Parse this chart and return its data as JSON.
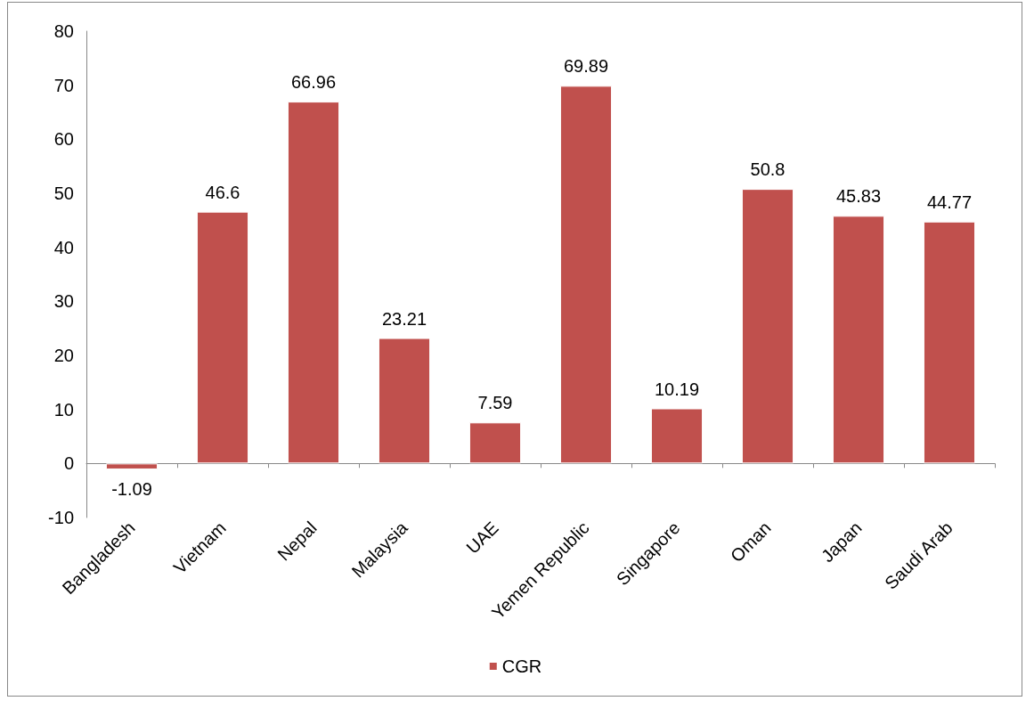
{
  "chart_data": {
    "type": "bar",
    "categories": [
      "Bangladesh",
      "Vietnam",
      "Nepal",
      "Malaysia",
      "UAE",
      "Yemen Republic",
      "Singapore",
      "Oman",
      "Japan",
      "Saudi Arab"
    ],
    "series": [
      {
        "name": "CGR",
        "color": "#c0504d",
        "values": [
          -1.09,
          46.6,
          66.96,
          23.21,
          7.59,
          69.89,
          10.19,
          50.8,
          45.83,
          44.77
        ]
      }
    ],
    "ylim": [
      -10,
      80
    ],
    "yticks": [
      -10,
      0,
      10,
      20,
      30,
      40,
      50,
      60,
      70,
      80
    ],
    "data_labels": true,
    "legend": "bottom"
  }
}
